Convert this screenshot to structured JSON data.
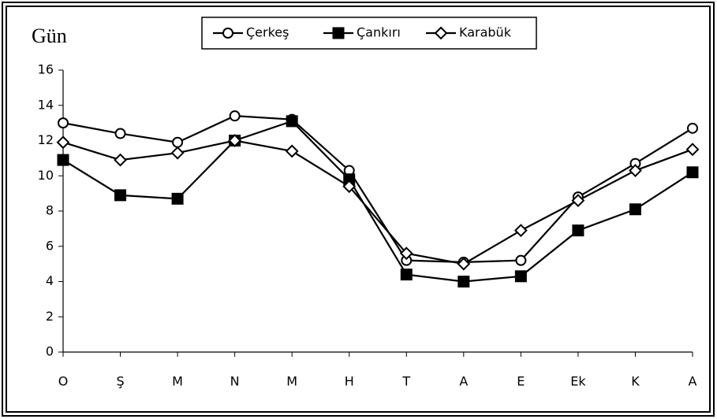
{
  "chart_data": {
    "type": "line",
    "y_label": "Gün",
    "categories": [
      "O",
      "Ş",
      "M",
      "N",
      "M",
      "H",
      "T",
      "A",
      "E",
      "Ek",
      "K",
      "A"
    ],
    "series": [
      {
        "name": "Çerkeş",
        "color": "#000000",
        "marker": "circle",
        "values": [
          13.0,
          12.4,
          11.9,
          13.4,
          13.2,
          10.3,
          5.2,
          5.1,
          5.2,
          8.8,
          10.7,
          12.7
        ]
      },
      {
        "name": "Çankırı",
        "color": "#000000",
        "marker": "square",
        "values": [
          10.9,
          8.9,
          8.7,
          12.0,
          13.1,
          9.8,
          4.4,
          4.0,
          4.3,
          6.9,
          8.1,
          10.2
        ]
      },
      {
        "name": "Karabük",
        "color": "#000000",
        "marker": "diamond",
        "values": [
          11.9,
          10.9,
          11.3,
          12.0,
          11.4,
          9.4,
          5.6,
          5.0,
          6.9,
          8.6,
          10.3,
          11.5
        ]
      }
    ],
    "ylim": [
      0,
      16
    ],
    "yticks": [
      0,
      2,
      4,
      6,
      8,
      10,
      12,
      14,
      16
    ],
    "grid": false,
    "legend": "top"
  }
}
